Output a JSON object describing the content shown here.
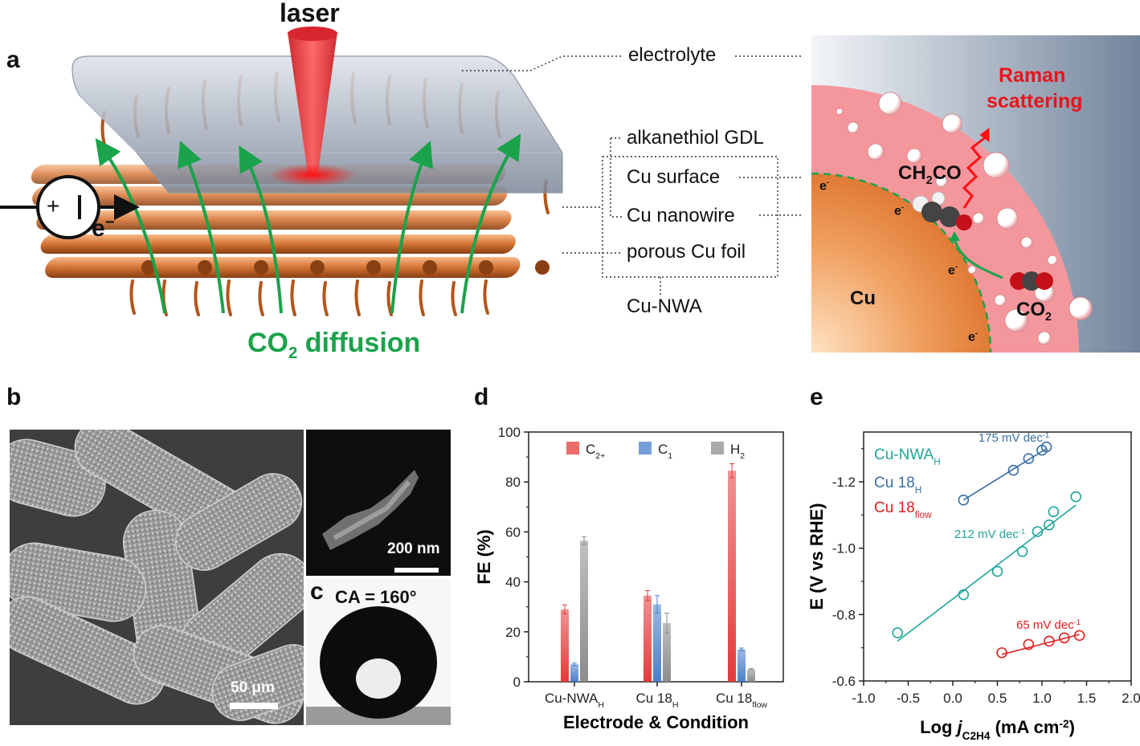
{
  "panel_letters": {
    "a": "a",
    "b": "b",
    "c": "c",
    "d": "d",
    "e": "e"
  },
  "panel_a": {
    "laser": "laser",
    "co2_diffusion_main": "CO",
    "co2_diffusion_sub": "2",
    "co2_diffusion_rest": " diffusion",
    "electron": "e",
    "plus": "+",
    "callouts": {
      "electrolyte": "electrolyte",
      "gdl": "alkanethiol GDL",
      "cu_surface": "Cu surface",
      "cu_nanowire": "Cu nanowire",
      "porous_foil": "porous Cu foil",
      "nwa": "Cu-NWA"
    },
    "zoom": {
      "raman_line1": "Raman",
      "raman_line2": "scattering",
      "ch2co": "CH",
      "ch2co_sub": "2",
      "ch2co_rest": "CO",
      "cu": "Cu",
      "co2": "CO",
      "co2_sub": "2",
      "e_minus": "e",
      "e_sup": "-"
    },
    "colors": {
      "green": "#1aa34a",
      "red": "#e8141c",
      "copper": "#c0601f",
      "pink": "#f29aa0"
    }
  },
  "panel_b": {
    "scale": "50 μm"
  },
  "panel_b_inset": {
    "scale": "200 nm"
  },
  "panel_c": {
    "ca": "CA = 160°"
  },
  "panel_d": {
    "chart_data": {
      "type": "bar",
      "categories": [
        "Cu-NWA",
        "Cu 18",
        "Cu 18"
      ],
      "category_subs": [
        "H",
        "H",
        "flow"
      ],
      "series": [
        {
          "name": "C",
          "sub": "2+",
          "color": "#e53a3a",
          "values": [
            29,
            34.5,
            84.5
          ],
          "errors": [
            1.8,
            2.0,
            2.8
          ]
        },
        {
          "name": "C",
          "sub": "1",
          "color": "#4a7fc9",
          "values": [
            7,
            31,
            13
          ],
          "errors": [
            0.5,
            3.5,
            0.5
          ]
        },
        {
          "name": "H",
          "sub": "2",
          "color": "#8c8c8c",
          "values": [
            56.5,
            23.5,
            5
          ],
          "errors": [
            1.5,
            4.0,
            0.3
          ]
        }
      ],
      "ylabel": "FE (%)",
      "xlabel": "Electrode & Condition",
      "ylim": [
        0,
        100
      ],
      "yticks": [
        "0",
        "20",
        "40",
        "60",
        "80",
        "100"
      ]
    }
  },
  "panel_e": {
    "chart_data": {
      "type": "scatter",
      "xlabel_main": "Log ",
      "xlabel_j": "j",
      "xlabel_sub": "C",
      "xlabel_sub2": "2",
      "xlabel_sub3": "H",
      "xlabel_sub4": "4",
      "xlabel_units": " (mA cm",
      "xlabel_sup": "-2",
      "xlabel_end": ")",
      "ylabel": "E (V vs RHE)",
      "xlim": [
        -1.0,
        2.0
      ],
      "ylim": [
        -0.6,
        -1.35
      ],
      "xticks": [
        "-1.0",
        "-0.5",
        "0.0",
        "0.5",
        "1.0",
        "1.5",
        "2.0"
      ],
      "yticks": [
        "-0.6",
        "-0.8",
        "-1.0",
        "-1.2"
      ],
      "series": [
        {
          "name": "Cu-NWA",
          "sub": "H",
          "color": "#20a59b",
          "x": [
            -0.62,
            0.12,
            0.5,
            0.78,
            0.95,
            1.08,
            1.13,
            1.38
          ],
          "y": [
            -0.745,
            -0.86,
            -0.93,
            -0.99,
            -1.05,
            -1.07,
            -1.11,
            -1.155
          ],
          "fit": [
            [
              -0.62,
              -0.72
            ],
            [
              1.38,
              -1.13
            ]
          ],
          "slope": "212 mV dec",
          "slope_sup": "-1"
        },
        {
          "name": "Cu 18",
          "sub": "H",
          "color": "#3a6ea5",
          "x": [
            0.12,
            0.68,
            0.85,
            1.0,
            1.05
          ],
          "y": [
            -1.145,
            -1.235,
            -1.27,
            -1.295,
            -1.305
          ],
          "fit": [
            [
              0.12,
              -1.145
            ],
            [
              1.05,
              -1.3
            ]
          ],
          "slope": "175 mV dec",
          "slope_sup": "-1"
        },
        {
          "name": "Cu 18",
          "sub": "flow",
          "color": "#e02020",
          "x": [
            0.55,
            0.85,
            1.08,
            1.25,
            1.42
          ],
          "y": [
            -0.685,
            -0.71,
            -0.72,
            -0.73,
            -0.737
          ],
          "fit": [
            [
              0.55,
              -0.68
            ],
            [
              1.42,
              -0.74
            ]
          ],
          "slope": "65 mV dec",
          "slope_sup": "-1"
        }
      ]
    }
  }
}
